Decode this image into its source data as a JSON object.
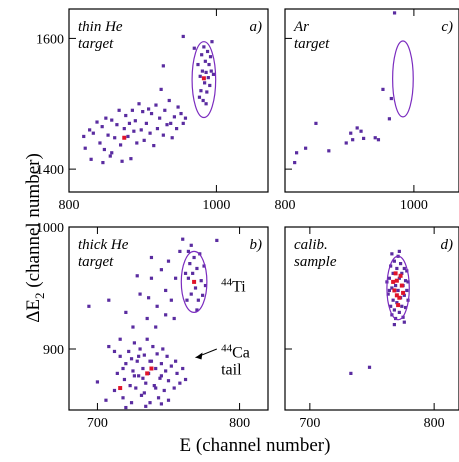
{
  "figure": {
    "xlabel": "E (channel number)",
    "ylabel_main": "ΔE",
    "ylabel_sub": "2",
    "ylabel_rest": " (channel number)"
  },
  "chart_data": [
    {
      "id": "a",
      "type": "scatter",
      "panel_label": "a)",
      "text_lines": [
        "thin He",
        "target"
      ],
      "xlim": [
        800,
        1070
      ],
      "ylim": [
        1365,
        1645
      ],
      "xticks": [
        800,
        1000
      ],
      "yticks": [
        1400,
        1600
      ],
      "xtick_labels": [
        "800",
        "1000"
      ],
      "ytick_labels": [
        "1400",
        "1600"
      ],
      "ellipse": {
        "cx": 983,
        "cy": 1537,
        "rx": 16,
        "ry": 58
      },
      "red_points": [
        [
          875,
          1448
        ],
        [
          983,
          1539
        ]
      ],
      "points": [
        [
          820,
          1450
        ],
        [
          822,
          1432
        ],
        [
          828,
          1460
        ],
        [
          830,
          1415
        ],
        [
          833,
          1455
        ],
        [
          838,
          1472
        ],
        [
          842,
          1440
        ],
        [
          845,
          1465
        ],
        [
          848,
          1430
        ],
        [
          850,
          1478
        ],
        [
          853,
          1452
        ],
        [
          856,
          1420
        ],
        [
          858,
          1475
        ],
        [
          862,
          1448
        ],
        [
          865,
          1468
        ],
        [
          868,
          1490
        ],
        [
          870,
          1437
        ],
        [
          872,
          1412
        ],
        [
          875,
          1462
        ],
        [
          877,
          1482
        ],
        [
          880,
          1450
        ],
        [
          882,
          1470
        ],
        [
          884,
          1416
        ],
        [
          886,
          1490
        ],
        [
          888,
          1458
        ],
        [
          890,
          1474
        ],
        [
          892,
          1440
        ],
        [
          895,
          1500
        ],
        [
          898,
          1460
        ],
        [
          900,
          1488
        ],
        [
          902,
          1444
        ],
        [
          905,
          1470
        ],
        [
          908,
          1492
        ],
        [
          910,
          1455
        ],
        [
          912,
          1485
        ],
        [
          915,
          1436
        ],
        [
          918,
          1498
        ],
        [
          920,
          1462
        ],
        [
          923,
          1478
        ],
        [
          925,
          1522
        ],
        [
          928,
          1452
        ],
        [
          930,
          1490
        ],
        [
          933,
          1468
        ],
        [
          936,
          1505
        ],
        [
          938,
          1470
        ],
        [
          940,
          1448
        ],
        [
          943,
          1480
        ],
        [
          946,
          1462
        ],
        [
          948,
          1495
        ],
        [
          952,
          1485
        ],
        [
          955,
          1470
        ],
        [
          958,
          1478
        ],
        [
          858,
          1425
        ],
        [
          846,
          1410
        ],
        [
          928,
          1558
        ],
        [
          955,
          1603
        ],
        [
          970,
          1585
        ],
        [
          975,
          1560
        ],
        [
          978,
          1542
        ],
        [
          979,
          1520
        ],
        [
          981,
          1550
        ],
        [
          982,
          1505
        ],
        [
          984,
          1532
        ],
        [
          985,
          1565
        ],
        [
          986,
          1548
        ],
        [
          987,
          1518
        ],
        [
          988,
          1580
        ],
        [
          989,
          1540
        ],
        [
          990,
          1560
        ],
        [
          991,
          1528
        ],
        [
          992,
          1572
        ],
        [
          993,
          1550
        ],
        [
          994,
          1595
        ],
        [
          986,
          1500
        ],
        [
          980,
          1575
        ],
        [
          977,
          1510
        ],
        [
          996,
          1545
        ],
        [
          983,
          1587
        ]
      ]
    },
    {
      "id": "c",
      "type": "scatter",
      "panel_label": "c)",
      "text_lines": [
        "Ar",
        "target"
      ],
      "xlim": [
        800,
        1070
      ],
      "ylim": [
        1365,
        1645
      ],
      "xticks": [
        800,
        1000
      ],
      "yticks": [
        1400,
        1600
      ],
      "xtick_labels": [
        "800",
        "1000"
      ],
      "ytick_labels": [],
      "ellipse": {
        "cx": 983,
        "cy": 1538,
        "rx": 16,
        "ry": 58
      },
      "red_points": [],
      "points": [
        [
          815,
          1410
        ],
        [
          818,
          1425
        ],
        [
          832,
          1432
        ],
        [
          848,
          1470
        ],
        [
          868,
          1428
        ],
        [
          895,
          1440
        ],
        [
          902,
          1455
        ],
        [
          905,
          1445
        ],
        [
          912,
          1463
        ],
        [
          918,
          1458
        ],
        [
          922,
          1447
        ],
        [
          940,
          1448
        ],
        [
          945,
          1445
        ],
        [
          962,
          1477
        ],
        [
          965,
          1508
        ],
        [
          952,
          1522
        ],
        [
          970,
          1639
        ]
      ]
    },
    {
      "id": "b",
      "type": "scatter",
      "panel_label": "b)",
      "text_lines": [
        "thick He",
        "target"
      ],
      "xlim": [
        680,
        820
      ],
      "ylim": [
        850,
        1000
      ],
      "xticks": [
        700,
        800
      ],
      "yticks": [
        900,
        1000
      ],
      "xtick_labels": [
        "700",
        "800"
      ],
      "ytick_labels": [
        "900",
        "1000"
      ],
      "ellipse": {
        "cx": 768,
        "cy": 955,
        "rx": 9,
        "ry": 25
      },
      "red_points": [
        [
          738,
          884
        ],
        [
          735,
          880
        ],
        [
          768,
          955
        ],
        [
          716,
          868
        ]
      ],
      "annotations": [
        {
          "text": "44Ti",
          "sup": "44",
          "base": "Ti"
        },
        {
          "sup": "44",
          "base": "Ca",
          "line2": "tail"
        }
      ],
      "points": [
        [
          700,
          873
        ],
        [
          706,
          858
        ],
        [
          708,
          902
        ],
        [
          712,
          866
        ],
        [
          714,
          880
        ],
        [
          716,
          894
        ],
        [
          718,
          860
        ],
        [
          719,
          875
        ],
        [
          720,
          888
        ],
        [
          722,
          898
        ],
        [
          723,
          870
        ],
        [
          724,
          856
        ],
        [
          725,
          882
        ],
        [
          726,
          905
        ],
        [
          727,
          868
        ],
        [
          728,
          890
        ],
        [
          729,
          878
        ],
        [
          730,
          900
        ],
        [
          731,
          862
        ],
        [
          732,
          884
        ],
        [
          733,
          895
        ],
        [
          734,
          872
        ],
        [
          735,
          908
        ],
        [
          736,
          880
        ],
        [
          737,
          856
        ],
        [
          738,
          890
        ],
        [
          739,
          902
        ],
        [
          740,
          870
        ],
        [
          741,
          884
        ],
        [
          742,
          896
        ],
        [
          743,
          860
        ],
        [
          744,
          876
        ],
        [
          745,
          888
        ],
        [
          746,
          900
        ],
        [
          747,
          866
        ],
        [
          748,
          882
        ],
        [
          749,
          894
        ],
        [
          750,
          874
        ],
        [
          752,
          886
        ],
        [
          754,
          868
        ],
        [
          756,
          880
        ],
        [
          758,
          872
        ],
        [
          760,
          884
        ],
        [
          732,
          876
        ],
        [
          726,
          878
        ],
        [
          737,
          890
        ],
        [
          741,
          868
        ],
        [
          729,
          894
        ],
        [
          718,
          884
        ],
        [
          724,
          892
        ],
        [
          733,
          864
        ],
        [
          745,
          878
        ],
        [
          712,
          898
        ],
        [
          694,
          935
        ],
        [
          720,
          930
        ],
        [
          725,
          918
        ],
        [
          730,
          945
        ],
        [
          735,
          925
        ],
        [
          738,
          958
        ],
        [
          742,
          935
        ],
        [
          745,
          965
        ],
        [
          748,
          948
        ],
        [
          750,
          972
        ],
        [
          752,
          940
        ],
        [
          755,
          958
        ],
        [
          758,
          980
        ],
        [
          760,
          990
        ],
        [
          762,
          962
        ],
        [
          741,
          918
        ],
        [
          748,
          928
        ],
        [
          736,
          942
        ],
        [
          754,
          925
        ],
        [
          716,
          908
        ],
        [
          738,
          975
        ],
        [
          728,
          960
        ],
        [
          708,
          940
        ],
        [
          763,
          940
        ],
        [
          764,
          958
        ],
        [
          765,
          970
        ],
        [
          766,
          945
        ],
        [
          767,
          962
        ],
        [
          768,
          975
        ],
        [
          769,
          950
        ],
        [
          770,
          966
        ],
        [
          771,
          940
        ],
        [
          772,
          978
        ],
        [
          773,
          956
        ],
        [
          774,
          944
        ],
        [
          775,
          968
        ],
        [
          776,
          952
        ],
        [
          764,
          980
        ],
        [
          770,
          932
        ],
        [
          766,
          985
        ],
        [
          784,
          989
        ],
        [
          720,
          852
        ],
        [
          734,
          853
        ],
        [
          745,
          855
        ],
        [
          750,
          858
        ],
        [
          762,
          875
        ],
        [
          755,
          890
        ]
      ]
    },
    {
      "id": "d",
      "type": "scatter",
      "panel_label": "d)",
      "text_lines": [
        "calib.",
        "sample"
      ],
      "xlim": [
        680,
        820
      ],
      "ylim": [
        850,
        1000
      ],
      "xticks": [
        700,
        800
      ],
      "yticks": [
        900,
        1000
      ],
      "xtick_labels": [
        "700",
        "800"
      ],
      "ytick_labels": [],
      "ellipse": {
        "cx": 771,
        "cy": 950,
        "rx": 9,
        "ry": 26
      },
      "red_points": [
        [
          768,
          948
        ],
        [
          770,
          956
        ],
        [
          772,
          942
        ],
        [
          774,
          952
        ],
        [
          769,
          962
        ],
        [
          771,
          936
        ],
        [
          775,
          946
        ],
        [
          767,
          955
        ],
        [
          773,
          960
        ],
        [
          770,
          944
        ]
      ],
      "points": [
        [
          763,
          945
        ],
        [
          764,
          958
        ],
        [
          765,
          935
        ],
        [
          765,
          968
        ],
        [
          766,
          950
        ],
        [
          766,
          928
        ],
        [
          767,
          962
        ],
        [
          767,
          940
        ],
        [
          768,
          972
        ],
        [
          768,
          932
        ],
        [
          769,
          952
        ],
        [
          769,
          925
        ],
        [
          770,
          966
        ],
        [
          770,
          938
        ],
        [
          771,
          976
        ],
        [
          771,
          948
        ],
        [
          772,
          930
        ],
        [
          772,
          958
        ],
        [
          773,
          970
        ],
        [
          773,
          942
        ],
        [
          774,
          935
        ],
        [
          774,
          962
        ],
        [
          775,
          952
        ],
        [
          775,
          926
        ],
        [
          776,
          966
        ],
        [
          776,
          944
        ],
        [
          777,
          956
        ],
        [
          777,
          934
        ],
        [
          778,
          948
        ],
        [
          778,
          964
        ],
        [
          779,
          940
        ],
        [
          764,
          948
        ],
        [
          766,
          978
        ],
        [
          768,
          920
        ],
        [
          772,
          980
        ],
        [
          776,
          922
        ],
        [
          762,
          955
        ],
        [
          779,
          955
        ],
        [
          733,
          880
        ],
        [
          748,
          885
        ]
      ]
    }
  ]
}
